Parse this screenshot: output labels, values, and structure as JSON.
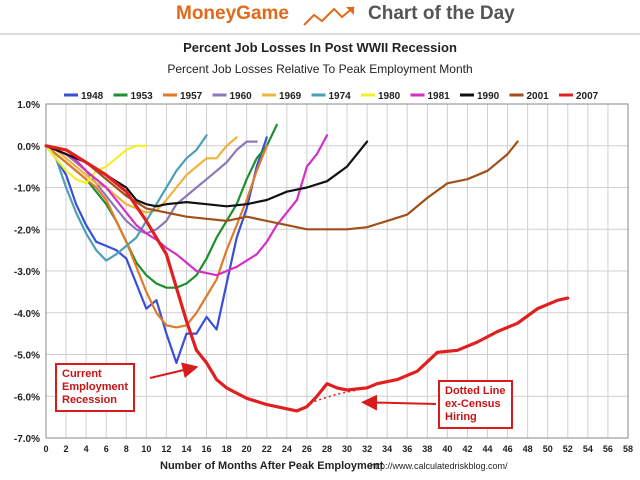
{
  "banner": {
    "brand": "MoneyGame",
    "section": "Chart of the Day"
  },
  "chart_data": {
    "type": "line",
    "title": "Percent Job Losses In Post WWII Recession",
    "subtitle": "Percent Job Losses Relative To Peak Employment Month",
    "xlabel": "Number of Months After Peak Employment",
    "ylabel": "",
    "source": "http://www.calculatedriskblog.com/",
    "xlim": [
      0,
      58
    ],
    "ylim": [
      -7.0,
      1.0
    ],
    "x_ticks": [
      0,
      2,
      4,
      6,
      8,
      10,
      12,
      14,
      16,
      18,
      20,
      22,
      24,
      26,
      28,
      30,
      32,
      34,
      36,
      38,
      40,
      42,
      44,
      46,
      48,
      50,
      52,
      54,
      56,
      58
    ],
    "y_ticks": [
      1.0,
      0.0,
      -1.0,
      -2.0,
      -3.0,
      -4.0,
      -5.0,
      -6.0,
      -7.0
    ],
    "y_tick_labels": [
      "1.0%",
      "0.0%",
      "-1.0%",
      "-2.0%",
      "-3.0%",
      "-4.0%",
      "-5.0%",
      "-6.0%",
      "-7.0%"
    ],
    "grid": true,
    "legend_position": "top",
    "series": [
      {
        "name": "1948",
        "color": "#3a4fd6",
        "points": [
          [
            0,
            0
          ],
          [
            1,
            -0.3
          ],
          [
            2,
            -0.7
          ],
          [
            3,
            -1.4
          ],
          [
            4,
            -1.9
          ],
          [
            5,
            -2.3
          ],
          [
            6,
            -2.4
          ],
          [
            7,
            -2.5
          ],
          [
            8,
            -2.7
          ],
          [
            9,
            -3.3
          ],
          [
            10,
            -3.9
          ],
          [
            11,
            -3.7
          ],
          [
            12,
            -4.5
          ],
          [
            13,
            -5.2
          ],
          [
            14,
            -4.5
          ],
          [
            15,
            -4.5
          ],
          [
            16,
            -4.1
          ],
          [
            17,
            -4.4
          ],
          [
            18,
            -3.3
          ],
          [
            19,
            -2.2
          ],
          [
            20,
            -1.5
          ],
          [
            21,
            -0.5
          ],
          [
            22,
            0.2
          ]
        ]
      },
      {
        "name": "1953",
        "color": "#1f8f2e",
        "points": [
          [
            0,
            0
          ],
          [
            1,
            -0.2
          ],
          [
            2,
            -0.4
          ],
          [
            3,
            -0.6
          ],
          [
            4,
            -0.8
          ],
          [
            5,
            -1.1
          ],
          [
            6,
            -1.4
          ],
          [
            7,
            -1.8
          ],
          [
            8,
            -2.3
          ],
          [
            9,
            -2.8
          ],
          [
            10,
            -3.1
          ],
          [
            11,
            -3.3
          ],
          [
            12,
            -3.4
          ],
          [
            13,
            -3.4
          ],
          [
            14,
            -3.3
          ],
          [
            15,
            -3.1
          ],
          [
            16,
            -2.7
          ],
          [
            17,
            -2.2
          ],
          [
            18,
            -1.8
          ],
          [
            19,
            -1.4
          ],
          [
            20,
            -0.8
          ],
          [
            21,
            -0.3
          ],
          [
            22,
            0.0
          ],
          [
            23,
            0.5
          ]
        ]
      },
      {
        "name": "1957",
        "color": "#e07a28",
        "points": [
          [
            0,
            0
          ],
          [
            1,
            -0.2
          ],
          [
            2,
            -0.4
          ],
          [
            3,
            -0.6
          ],
          [
            4,
            -0.8
          ],
          [
            5,
            -1.0
          ],
          [
            6,
            -1.3
          ],
          [
            7,
            -1.8
          ],
          [
            8,
            -2.3
          ],
          [
            9,
            -2.9
          ],
          [
            10,
            -3.5
          ],
          [
            11,
            -4.0
          ],
          [
            12,
            -4.3
          ],
          [
            13,
            -4.35
          ],
          [
            14,
            -4.3
          ],
          [
            15,
            -4.0
          ],
          [
            16,
            -3.6
          ],
          [
            17,
            -3.2
          ],
          [
            18,
            -2.5
          ],
          [
            19,
            -1.9
          ],
          [
            20,
            -1.3
          ],
          [
            21,
            -0.6
          ],
          [
            22,
            0.0
          ]
        ]
      },
      {
        "name": "1960",
        "color": "#8c78b8",
        "points": [
          [
            0,
            0
          ],
          [
            1,
            -0.1
          ],
          [
            2,
            -0.2
          ],
          [
            3,
            -0.4
          ],
          [
            4,
            -0.6
          ],
          [
            5,
            -0.9
          ],
          [
            6,
            -1.2
          ],
          [
            7,
            -1.5
          ],
          [
            8,
            -1.8
          ],
          [
            9,
            -2.0
          ],
          [
            10,
            -2.1
          ],
          [
            11,
            -2.0
          ],
          [
            12,
            -1.8
          ],
          [
            13,
            -1.4
          ],
          [
            14,
            -1.2
          ],
          [
            15,
            -1.0
          ],
          [
            16,
            -0.8
          ],
          [
            17,
            -0.6
          ],
          [
            18,
            -0.4
          ],
          [
            19,
            -0.1
          ],
          [
            20,
            0.1
          ],
          [
            21,
            0.1
          ]
        ]
      },
      {
        "name": "1969",
        "color": "#f0b33c",
        "points": [
          [
            0,
            0
          ],
          [
            1,
            -0.1
          ],
          [
            2,
            -0.3
          ],
          [
            3,
            -0.5
          ],
          [
            4,
            -0.7
          ],
          [
            5,
            -0.9
          ],
          [
            6,
            -1.0
          ],
          [
            7,
            -1.2
          ],
          [
            8,
            -1.4
          ],
          [
            9,
            -1.5
          ],
          [
            10,
            -1.6
          ],
          [
            11,
            -1.55
          ],
          [
            12,
            -1.3
          ],
          [
            13,
            -1.0
          ],
          [
            14,
            -0.7
          ],
          [
            15,
            -0.5
          ],
          [
            16,
            -0.3
          ],
          [
            17,
            -0.3
          ],
          [
            18,
            0.0
          ],
          [
            19,
            0.2
          ]
        ]
      },
      {
        "name": "1974",
        "color": "#4d9fb8",
        "points": [
          [
            0,
            0
          ],
          [
            1,
            -0.3
          ],
          [
            2,
            -1.0
          ],
          [
            3,
            -1.6
          ],
          [
            4,
            -2.1
          ],
          [
            5,
            -2.5
          ],
          [
            6,
            -2.75
          ],
          [
            7,
            -2.6
          ],
          [
            8,
            -2.4
          ],
          [
            9,
            -2.2
          ],
          [
            10,
            -1.8
          ],
          [
            11,
            -1.4
          ],
          [
            12,
            -1.0
          ],
          [
            13,
            -0.6
          ],
          [
            14,
            -0.3
          ],
          [
            15,
            -0.1
          ],
          [
            16,
            0.25
          ]
        ]
      },
      {
        "name": "1980",
        "color": "#f3f029",
        "points": [
          [
            0,
            0
          ],
          [
            1,
            -0.3
          ],
          [
            2,
            -0.6
          ],
          [
            3,
            -0.8
          ],
          [
            4,
            -0.9
          ],
          [
            5,
            -0.6
          ],
          [
            6,
            -0.5
          ],
          [
            7,
            -0.3
          ],
          [
            8,
            -0.1
          ],
          [
            9,
            0.0
          ],
          [
            10,
            0.0
          ]
        ]
      },
      {
        "name": "1981",
        "color": "#d430c8",
        "points": [
          [
            0,
            0
          ],
          [
            1,
            -0.1
          ],
          [
            2,
            -0.2
          ],
          [
            3,
            -0.35
          ],
          [
            4,
            -0.6
          ],
          [
            5,
            -0.8
          ],
          [
            6,
            -1.0
          ],
          [
            7,
            -1.3
          ],
          [
            8,
            -1.6
          ],
          [
            9,
            -1.9
          ],
          [
            10,
            -2.1
          ],
          [
            11,
            -2.25
          ],
          [
            12,
            -2.45
          ],
          [
            13,
            -2.6
          ],
          [
            14,
            -2.8
          ],
          [
            15,
            -3.0
          ],
          [
            16,
            -3.05
          ],
          [
            17,
            -3.1
          ],
          [
            18,
            -3.0
          ],
          [
            19,
            -2.9
          ],
          [
            20,
            -2.75
          ],
          [
            21,
            -2.6
          ],
          [
            22,
            -2.3
          ],
          [
            23,
            -1.9
          ],
          [
            24,
            -1.6
          ],
          [
            25,
            -1.3
          ],
          [
            26,
            -0.5
          ],
          [
            27,
            -0.2
          ],
          [
            28,
            0.25
          ]
        ]
      },
      {
        "name": "1990",
        "color": "#111111",
        "points": [
          [
            0,
            0
          ],
          [
            2,
            -0.2
          ],
          [
            4,
            -0.4
          ],
          [
            6,
            -0.7
          ],
          [
            8,
            -1.0
          ],
          [
            9,
            -1.3
          ],
          [
            10,
            -1.4
          ],
          [
            11,
            -1.45
          ],
          [
            12,
            -1.4
          ],
          [
            14,
            -1.35
          ],
          [
            16,
            -1.4
          ],
          [
            18,
            -1.45
          ],
          [
            20,
            -1.4
          ],
          [
            22,
            -1.3
          ],
          [
            24,
            -1.1
          ],
          [
            26,
            -1.0
          ],
          [
            28,
            -0.85
          ],
          [
            30,
            -0.5
          ],
          [
            31,
            -0.2
          ],
          [
            32,
            0.1
          ]
        ]
      },
      {
        "name": "2001",
        "color": "#a0501a",
        "points": [
          [
            0,
            0
          ],
          [
            2,
            -0.1
          ],
          [
            4,
            -0.4
          ],
          [
            6,
            -0.8
          ],
          [
            8,
            -1.2
          ],
          [
            10,
            -1.5
          ],
          [
            12,
            -1.6
          ],
          [
            14,
            -1.7
          ],
          [
            16,
            -1.75
          ],
          [
            18,
            -1.8
          ],
          [
            20,
            -1.7
          ],
          [
            22,
            -1.8
          ],
          [
            24,
            -1.9
          ],
          [
            26,
            -2.0
          ],
          [
            28,
            -2.0
          ],
          [
            30,
            -2.0
          ],
          [
            32,
            -1.95
          ],
          [
            34,
            -1.8
          ],
          [
            36,
            -1.65
          ],
          [
            38,
            -1.25
          ],
          [
            40,
            -0.9
          ],
          [
            42,
            -0.8
          ],
          [
            44,
            -0.6
          ],
          [
            46,
            -0.2
          ],
          [
            47,
            0.1
          ]
        ]
      },
      {
        "name": "2007",
        "color": "#e02020",
        "points": [
          [
            0,
            0
          ],
          [
            2,
            -0.1
          ],
          [
            4,
            -0.4
          ],
          [
            6,
            -0.7
          ],
          [
            8,
            -1.1
          ],
          [
            10,
            -1.8
          ],
          [
            12,
            -2.6
          ],
          [
            13,
            -3.4
          ],
          [
            14,
            -4.2
          ],
          [
            15,
            -4.9
          ],
          [
            16,
            -5.2
          ],
          [
            17,
            -5.6
          ],
          [
            18,
            -5.8
          ],
          [
            20,
            -6.05
          ],
          [
            22,
            -6.2
          ],
          [
            24,
            -6.3
          ],
          [
            25,
            -6.35
          ],
          [
            26,
            -6.25
          ],
          [
            27,
            -6.0
          ],
          [
            28,
            -5.7
          ],
          [
            29,
            -5.8
          ],
          [
            30,
            -5.85
          ],
          [
            32,
            -5.8
          ],
          [
            33,
            -5.7
          ],
          [
            35,
            -5.6
          ],
          [
            37,
            -5.4
          ],
          [
            39,
            -4.95
          ],
          [
            41,
            -4.9
          ],
          [
            43,
            -4.7
          ],
          [
            45,
            -4.45
          ],
          [
            47,
            -4.25
          ],
          [
            49,
            -3.9
          ],
          [
            51,
            -3.7
          ],
          [
            52,
            -3.65
          ]
        ]
      }
    ],
    "dotted_segment": {
      "series": "2007",
      "points": [
        [
          25,
          -6.35
        ],
        [
          27,
          -6.1
        ],
        [
          29,
          -5.95
        ],
        [
          31,
          -5.85
        ]
      ]
    },
    "annotations": [
      {
        "id": "current",
        "text": "Current\nEmployment\nRecession",
        "target": [
          15,
          -5.3
        ]
      },
      {
        "id": "dotted",
        "text": "Dotted Line\nex-Census\nHiring",
        "target": [
          31,
          -6.0
        ]
      }
    ]
  }
}
